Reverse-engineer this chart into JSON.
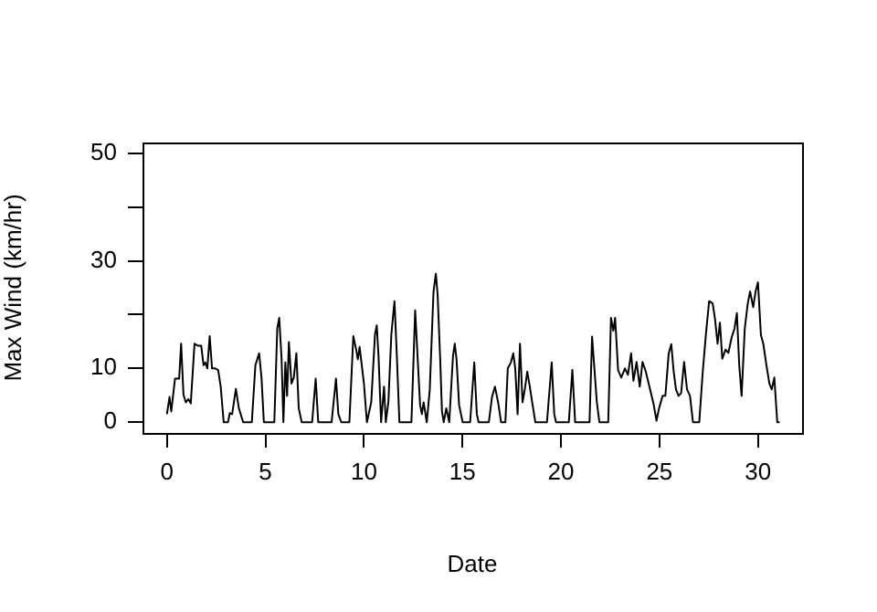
{
  "chart_data": {
    "type": "line",
    "xlabel": "Date",
    "ylabel": "Max Wind (km/hr)",
    "xlim": [
      -1.24,
      32.24
    ],
    "xticks": [
      0,
      5,
      10,
      15,
      20,
      25,
      30
    ],
    "ylim": [
      -2,
      52
    ],
    "yticks": [
      0,
      10,
      {
        "value": 20,
        "label": null
      },
      30,
      {
        "value": 40,
        "label": null
      },
      50
    ],
    "grid": false,
    "legend": false,
    "marker": "none",
    "line_style": "solid",
    "series": [
      {
        "color": "#000000",
        "x": [
          0.0,
          0.13,
          0.22,
          0.41,
          0.62,
          0.72,
          0.84,
          0.96,
          1.09,
          1.21,
          1.4,
          1.58,
          1.74,
          1.86,
          1.95,
          2.05,
          2.17,
          2.29,
          2.45,
          2.6,
          2.73,
          2.88,
          3.1,
          3.19,
          3.31,
          3.5,
          3.65,
          3.87,
          4.31,
          4.49,
          4.68,
          4.8,
          4.92,
          5.45,
          5.6,
          5.7,
          5.82,
          5.91,
          6.01,
          6.1,
          6.19,
          6.32,
          6.44,
          6.57,
          6.69,
          6.84,
          7.37,
          7.55,
          7.68,
          8.36,
          8.58,
          8.7,
          8.85,
          9.26,
          9.46,
          9.6,
          9.69,
          9.78,
          10.0,
          10.15,
          10.37,
          10.56,
          10.65,
          10.74,
          10.87,
          11.02,
          11.11,
          11.24,
          11.39,
          11.55,
          11.67,
          11.8,
          12.41,
          12.6,
          12.72,
          12.85,
          12.94,
          13.03,
          13.19,
          13.34,
          13.53,
          13.65,
          13.74,
          13.87,
          13.96,
          14.05,
          14.18,
          14.33,
          14.52,
          14.61,
          14.7,
          14.83,
          15.01,
          15.39,
          15.6,
          15.73,
          15.82,
          16.34,
          16.5,
          16.65,
          16.81,
          16.96,
          17.18,
          17.3,
          17.46,
          17.58,
          17.68,
          17.8,
          17.92,
          18.05,
          18.17,
          18.29,
          18.42,
          18.54,
          18.7,
          19.29,
          19.53,
          19.66,
          19.75,
          20.4,
          20.58,
          20.72,
          21.45,
          21.58,
          21.82,
          21.95,
          22.4,
          22.54,
          22.66,
          22.75,
          22.9,
          23.06,
          23.25,
          23.4,
          23.56,
          23.68,
          23.84,
          24.0,
          24.14,
          24.3,
          24.49,
          24.7,
          24.85,
          24.98,
          25.16,
          25.3,
          25.47,
          25.6,
          25.72,
          25.84,
          25.97,
          26.1,
          26.25,
          26.4,
          26.55,
          26.7,
          27.02,
          27.2,
          27.36,
          27.52,
          27.7,
          27.82,
          27.95,
          28.07,
          28.19,
          28.35,
          28.5,
          28.66,
          28.81,
          28.93,
          29.05,
          29.17,
          29.33,
          29.48,
          29.6,
          29.76,
          29.88,
          30.0,
          30.15,
          30.27,
          30.43,
          30.58,
          30.7,
          30.83,
          30.98,
          31.1
        ],
        "values": [
          1.5,
          4.7,
          2.0,
          8.1,
          8.1,
          14.6,
          5.1,
          3.7,
          4.3,
          3.5,
          14.6,
          14.2,
          14.2,
          10.6,
          11.1,
          10.0,
          16.0,
          10.0,
          10.0,
          9.7,
          6.6,
          0,
          0,
          1.7,
          1.5,
          6.2,
          2.6,
          0,
          0,
          10.6,
          12.8,
          8.3,
          0,
          0,
          17.4,
          19.4,
          11.7,
          0,
          11.1,
          4.9,
          14.9,
          7.2,
          8.3,
          12.8,
          2.6,
          0,
          0,
          8.1,
          0,
          0,
          8.1,
          1.5,
          0,
          0,
          16.0,
          13.6,
          11.7,
          14.0,
          7.2,
          0,
          3.7,
          16.3,
          18.0,
          12.3,
          0,
          6.6,
          0,
          3.7,
          16.3,
          22.5,
          12.3,
          0,
          0,
          20.8,
          12.3,
          3.2,
          1.5,
          3.7,
          0,
          6.0,
          24.2,
          27.6,
          23.7,
          11.7,
          2.0,
          0,
          2.6,
          0,
          12.3,
          14.6,
          11.7,
          3.2,
          0,
          0,
          11.1,
          1.5,
          0,
          0,
          4.7,
          6.6,
          3.7,
          0,
          0,
          10.0,
          11.1,
          12.8,
          10.0,
          1.5,
          14.6,
          3.7,
          6.2,
          9.4,
          6.6,
          3.7,
          0,
          0,
          11.1,
          1.5,
          0,
          0,
          9.7,
          0,
          0,
          15.9,
          3.8,
          0,
          0,
          19.4,
          17.0,
          19.4,
          9.7,
          8.3,
          10.0,
          8.8,
          12.8,
          7.7,
          11.2,
          6.6,
          11.2,
          9.5,
          6.6,
          3.4,
          0.3,
          2.6,
          4.9,
          4.9,
          12.8,
          14.5,
          9.5,
          6.1,
          4.9,
          5.4,
          11.2,
          6.1,
          4.9,
          0,
          0,
          9.5,
          16.4,
          22.5,
          22.1,
          19.2,
          14.6,
          18.5,
          11.8,
          13.5,
          12.9,
          15.7,
          17.4,
          20.3,
          10.6,
          4.9,
          17.4,
          22.0,
          24.3,
          21.4,
          24.3,
          26.0,
          16.2,
          14.6,
          10.6,
          7.2,
          6.1,
          8.3,
          0,
          0
        ]
      }
    ]
  }
}
